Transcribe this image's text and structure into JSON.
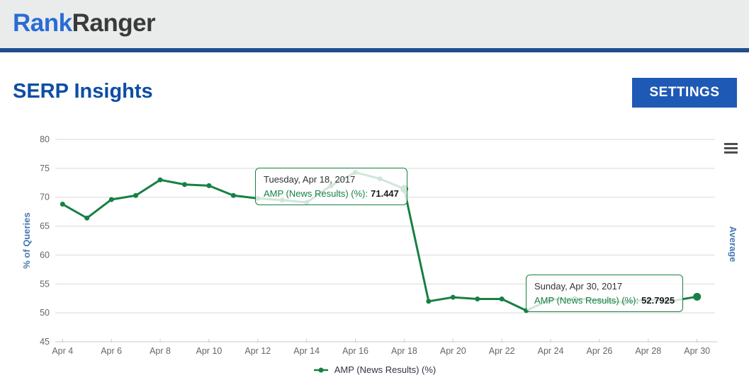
{
  "header": {
    "logo": {
      "part1": "Rank",
      "part2": "Ranger"
    }
  },
  "toolbar": {
    "page_title": "SERP Insights",
    "settings_label": "SETTINGS"
  },
  "icons": {
    "chart_menu": "hamburger-menu-icon"
  },
  "colors": {
    "header_bg": "#eaecec",
    "header_bar": "#1f4e8c",
    "brand_blue": "#2a6cd5",
    "brand_dark": "#3a3a3a",
    "title_blue": "#0d4da5",
    "button_blue": "#1e59b5",
    "series_green": "#178044",
    "axis_title_blue": "#4678b2"
  },
  "chart_data": {
    "type": "line",
    "title": "",
    "xlabel": "",
    "ylabel": "% of Queries",
    "ylabel_right": "Average",
    "ylim": [
      45,
      80
    ],
    "ytick_step": 5,
    "grid": true,
    "legend_position": "bottom",
    "xtick_every": 2,
    "categories": [
      "Apr 4",
      "Apr 5",
      "Apr 6",
      "Apr 7",
      "Apr 8",
      "Apr 9",
      "Apr 10",
      "Apr 11",
      "Apr 12",
      "Apr 13",
      "Apr 14",
      "Apr 15",
      "Apr 16",
      "Apr 17",
      "Apr 18",
      "Apr 19",
      "Apr 20",
      "Apr 21",
      "Apr 22",
      "Apr 23",
      "Apr 24",
      "Apr 25",
      "Apr 26",
      "Apr 27",
      "Apr 28",
      "Apr 29",
      "Apr 30"
    ],
    "series": [
      {
        "name": "AMP (News Results) (%)",
        "color": "#178044",
        "values": [
          68.8,
          66.4,
          69.6,
          70.3,
          73.0,
          72.2,
          72.0,
          70.3,
          69.8,
          69.5,
          69.1,
          72.0,
          74.3,
          73.2,
          71.447,
          52.0,
          52.7,
          52.4,
          52.4,
          50.4,
          52.3,
          52.5,
          52.2,
          51.8,
          52.3,
          52.1,
          52.7925
        ]
      }
    ],
    "tooltips": [
      {
        "anchor_index": 14,
        "date_label": "Tuesday, Apr 18, 2017",
        "series_label": "AMP (News Results) (%):",
        "value": "71.447"
      },
      {
        "anchor_index": 26,
        "date_label": "Sunday, Apr 30, 2017",
        "series_label": "AMP (News Results) (%):",
        "value": "52.7925"
      }
    ]
  }
}
